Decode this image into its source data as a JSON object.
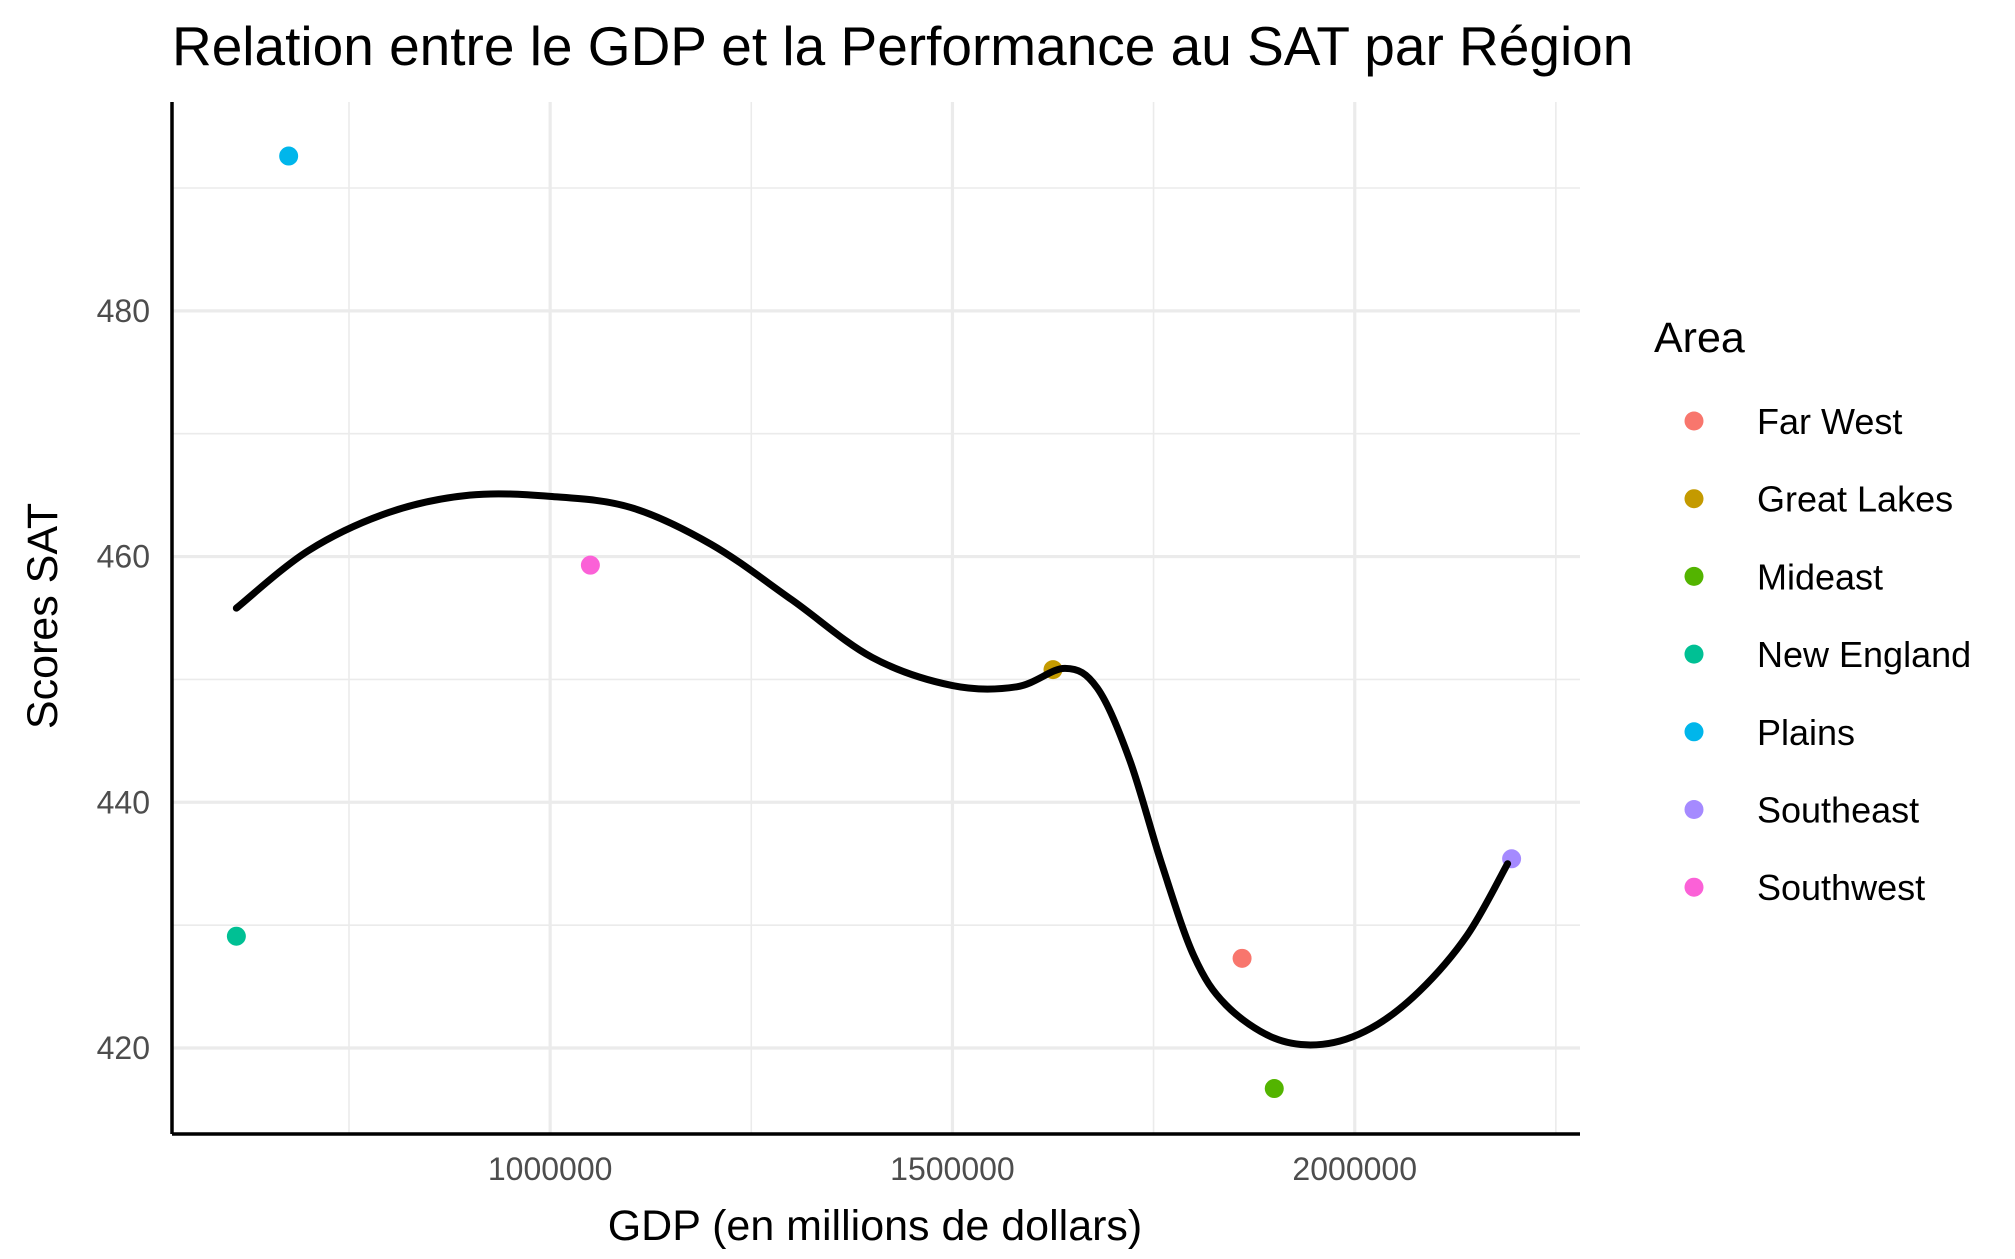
{
  "chart_data": {
    "type": "scatter",
    "title": "Relation entre le GDP et la Performance au SAT par Région",
    "xlabel": "GDP (en millions de dollars)",
    "ylabel": "Scores SAT",
    "xlim": [
      530000,
      2280000
    ],
    "ylim": [
      413,
      497
    ],
    "x_ticks": [
      1000000,
      1500000,
      2000000
    ],
    "x_tick_labels": [
      "1000000",
      "1500000",
      "2000000"
    ],
    "y_ticks": [
      420,
      440,
      460,
      480
    ],
    "y_tick_labels": [
      "420",
      "440",
      "460",
      "480"
    ],
    "grid": true,
    "legend": {
      "title": "Area",
      "position": "right",
      "entries": [
        {
          "label": "Far West",
          "color": "#F8766D"
        },
        {
          "label": "Great Lakes",
          "color": "#C49A00"
        },
        {
          "label": "Mideast",
          "color": "#53B400"
        },
        {
          "label": "New England",
          "color": "#00C094"
        },
        {
          "label": "Plains",
          "color": "#00B6EB"
        },
        {
          "label": "Southeast",
          "color": "#A58AFF"
        },
        {
          "label": "Southwest",
          "color": "#FB61D7"
        }
      ]
    },
    "series": [
      {
        "name": "Far West",
        "color": "#F8766D",
        "points": [
          {
            "x": 1860000,
            "y": 427.3
          }
        ]
      },
      {
        "name": "Great Lakes",
        "color": "#C49A00",
        "points": [
          {
            "x": 1625000,
            "y": 450.8
          }
        ]
      },
      {
        "name": "Mideast",
        "color": "#53B400",
        "points": [
          {
            "x": 1900000,
            "y": 416.7
          }
        ]
      },
      {
        "name": "New England",
        "color": "#00C094",
        "points": [
          {
            "x": 610000,
            "y": 429.1
          }
        ]
      },
      {
        "name": "Plains",
        "color": "#00B6EB",
        "points": [
          {
            "x": 675000,
            "y": 492.6
          }
        ]
      },
      {
        "name": "Southeast",
        "color": "#A58AFF",
        "points": [
          {
            "x": 2195000,
            "y": 435.4
          }
        ]
      },
      {
        "name": "Southwest",
        "color": "#FB61D7",
        "points": [
          {
            "x": 1050000,
            "y": 459.3
          }
        ]
      }
    ],
    "smooth_line": {
      "color": "#000000",
      "points": [
        {
          "x": 610000,
          "y": 455.8
        },
        {
          "x": 700000,
          "y": 460.5
        },
        {
          "x": 800000,
          "y": 463.6
        },
        {
          "x": 900000,
          "y": 465.0
        },
        {
          "x": 1000000,
          "y": 464.9
        },
        {
          "x": 1100000,
          "y": 464.0
        },
        {
          "x": 1200000,
          "y": 461.0
        },
        {
          "x": 1300000,
          "y": 456.5
        },
        {
          "x": 1400000,
          "y": 451.8
        },
        {
          "x": 1500000,
          "y": 449.5
        },
        {
          "x": 1580000,
          "y": 449.4
        },
        {
          "x": 1640000,
          "y": 450.9
        },
        {
          "x": 1680000,
          "y": 449.3
        },
        {
          "x": 1720000,
          "y": 443.5
        },
        {
          "x": 1760000,
          "y": 435.0
        },
        {
          "x": 1800000,
          "y": 427.5
        },
        {
          "x": 1840000,
          "y": 423.5
        },
        {
          "x": 1900000,
          "y": 420.8
        },
        {
          "x": 1960000,
          "y": 420.3
        },
        {
          "x": 2020000,
          "y": 421.6
        },
        {
          "x": 2080000,
          "y": 424.6
        },
        {
          "x": 2140000,
          "y": 429.2
        },
        {
          "x": 2190000,
          "y": 435.0
        }
      ]
    }
  }
}
